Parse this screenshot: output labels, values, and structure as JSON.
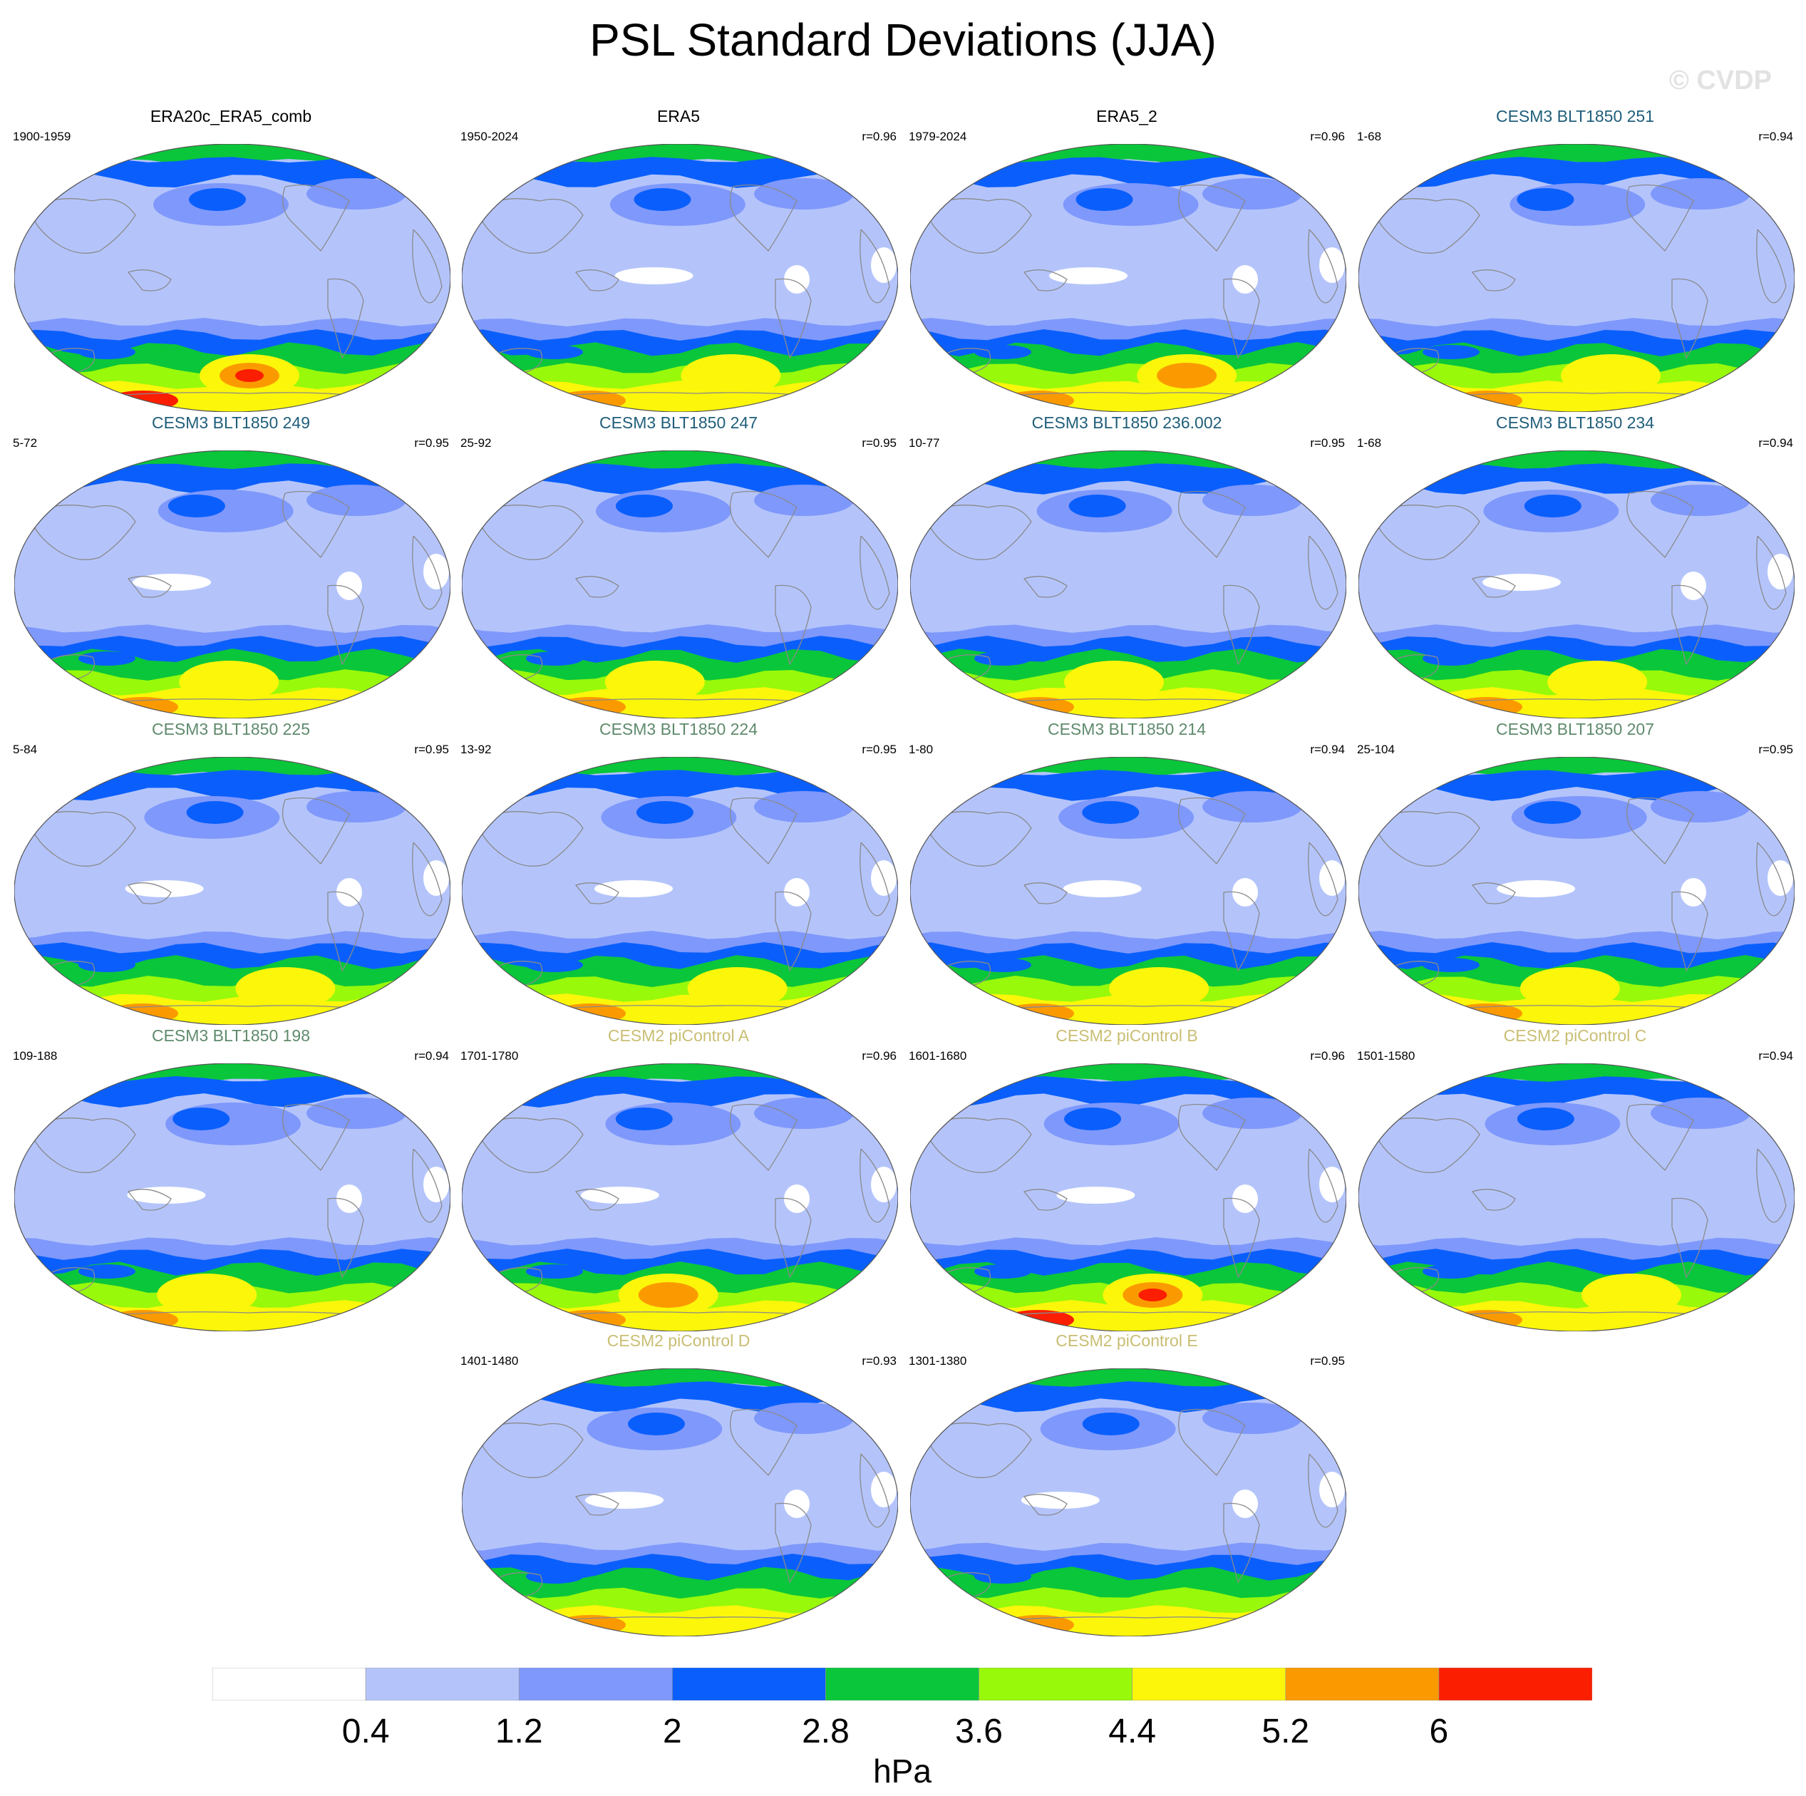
{
  "title": "PSL Standard Deviations (JJA)",
  "watermark": "© CVDP",
  "title_colors": {
    "obs": "#000000",
    "cesm3_a": "#1f5e7a",
    "cesm3_b": "#5f8a6c",
    "cesm2": "#c9be72"
  },
  "panels": [
    {
      "title": "ERA20c_ERA5_comb",
      "years": "1900-1959",
      "r": "",
      "color": "obs",
      "ant": 5.8,
      "pac": 1.3
    },
    {
      "title": "ERA5",
      "years": "1950-2024",
      "r": "r=0.96",
      "color": "obs",
      "ant": 5.0,
      "pac": 0.5
    },
    {
      "title": "ERA5_2",
      "years": "1979-2024",
      "r": "r=0.96",
      "color": "obs",
      "ant": 5.4,
      "pac": 0.5
    },
    {
      "title": "CESM3 BLT1850 251",
      "years": "1-68",
      "r": "r=0.94",
      "color": "cesm3_a",
      "ant": 5.0,
      "pac": 1.3
    },
    {
      "title": "CESM3 BLT1850 249",
      "years": "5-72",
      "r": "r=0.95",
      "color": "cesm3_a",
      "ant": 5.0,
      "pac": 0.5
    },
    {
      "title": "CESM3 BLT1850 247",
      "years": "25-92",
      "r": "r=0.95",
      "color": "cesm3_a",
      "ant": 4.6,
      "pac": 1.3
    },
    {
      "title": "CESM3 BLT1850 236.002",
      "years": "10-77",
      "r": "r=0.95",
      "color": "cesm3_a",
      "ant": 4.6,
      "pac": 0.8
    },
    {
      "title": "CESM3 BLT1850 234",
      "years": "1-68",
      "r": "r=0.94",
      "color": "cesm3_a",
      "ant": 5.0,
      "pac": 0.5
    },
    {
      "title": "CESM3 BLT1850 225",
      "years": "5-84",
      "r": "r=0.95",
      "color": "cesm3_b",
      "ant": 4.6,
      "pac": 0.5
    },
    {
      "title": "CESM3 BLT1850 224",
      "years": "13-92",
      "r": "r=0.95",
      "color": "cesm3_b",
      "ant": 4.6,
      "pac": 0.5
    },
    {
      "title": "CESM3 BLT1850 214",
      "years": "1-80",
      "r": "r=0.94",
      "color": "cesm3_b",
      "ant": 4.6,
      "pac": 0.5
    },
    {
      "title": "CESM3 BLT1850 207",
      "years": "25-104",
      "r": "r=0.95",
      "color": "cesm3_b",
      "ant": 4.6,
      "pac": 0.5
    },
    {
      "title": "CESM3 BLT1850 198",
      "years": "109-188",
      "r": "r=0.94",
      "color": "cesm3_b",
      "ant": 4.6,
      "pac": 0.5
    },
    {
      "title": "CESM2 piControl A",
      "years": "1701-1780",
      "r": "r=0.96",
      "color": "cesm2",
      "ant": 5.4,
      "pac": 0.5
    },
    {
      "title": "CESM2 piControl B",
      "years": "1601-1680",
      "r": "r=0.96",
      "color": "cesm2",
      "ant": 5.8,
      "pac": 0.5
    },
    {
      "title": "CESM2 piControl C",
      "years": "1501-1580",
      "r": "r=0.94",
      "color": "cesm2",
      "ant": 4.6,
      "pac": 1.3
    },
    {
      "title": "CESM2 piControl D",
      "years": "1401-1480",
      "r": "r=0.93",
      "color": "cesm2",
      "ant": 4.2,
      "pac": 0.5
    },
    {
      "title": "CESM2 piControl E",
      "years": "1301-1380",
      "r": "r=0.95",
      "color": "cesm2",
      "ant": 4.2,
      "pac": 0.5
    }
  ],
  "colorbar": {
    "labels": [
      "0.4",
      "1.2",
      "2",
      "2.8",
      "3.6",
      "4.4",
      "5.2",
      "6"
    ],
    "levels": [
      0.4,
      1.2,
      2.0,
      2.8,
      3.6,
      4.4,
      5.2,
      6.0
    ],
    "colors": [
      "#ffffff",
      "#b4c4fb",
      "#7f98fb",
      "#0a5ffc",
      "#0ac63a",
      "#98f90a",
      "#fbf60a",
      "#fb9a00",
      "#fb1e00"
    ],
    "units": "hPa"
  }
}
